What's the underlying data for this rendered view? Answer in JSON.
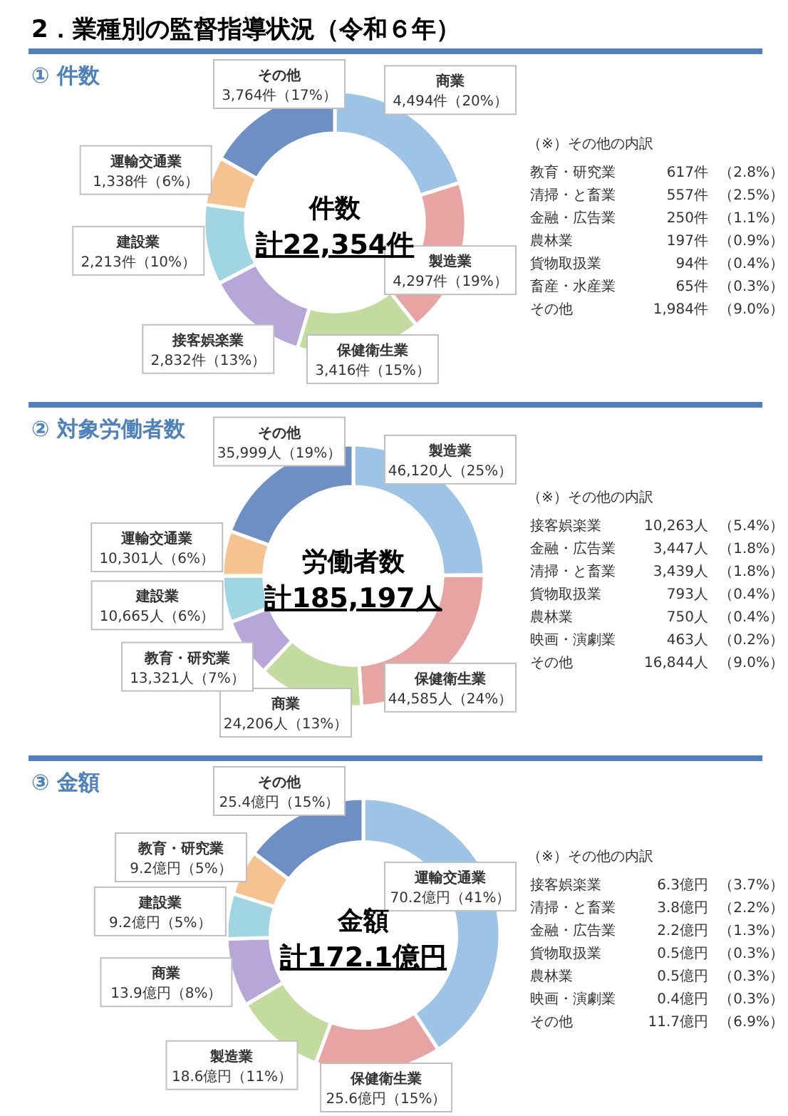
{
  "chart_data": [
    {
      "type": "donut",
      "title": "2．業種別の監督指導状況（令和６年）",
      "subtitle": "① 件数",
      "categories": [
        "商業",
        "製造業",
        "保健衛生業",
        "接客娯楽業",
        "建設業",
        "運輸交通業",
        "その他"
      ],
      "values": [
        4494,
        4297,
        3416,
        2832,
        2213,
        1338,
        3764
      ],
      "value_labels": [
        "4,494件（20%）",
        "4,297件（19%）",
        "3,416件（15%）",
        "2,832件（13%）",
        "2,213件（10%）",
        "1,338件（6%）",
        "3,764件（17%）"
      ],
      "colors": [
        "#9dc3e6",
        "#e8a3a3",
        "#c4dba0",
        "#b7a6d8",
        "#9fd6e2",
        "#f6c290",
        "#6d8fc4"
      ],
      "annotations": [
        "件数",
        "計22,354件",
        "（※）その他の内訳",
        "教育・研究業",
        "617件",
        "（2.8%）",
        "清掃・と畜業",
        "557件",
        "（2.5%）",
        "金融・広告業",
        "250件",
        "（1.1%）",
        "農林業",
        "197件",
        "（0.9%）",
        "貨物取扱業",
        "94件",
        "（0.4%）",
        "畜産・水産業",
        "65件",
        "（0.3%）",
        "その他",
        "1,984件",
        "（9.0%）"
      ]
    },
    {
      "type": "donut",
      "subtitle": "② 対象労働者数",
      "categories": [
        "製造業",
        "保健衛生業",
        "商業",
        "教育・研究業",
        "建設業",
        "運輸交通業",
        "その他"
      ],
      "values": [
        46120,
        44585,
        24206,
        13321,
        10665,
        10301,
        35999
      ],
      "value_labels": [
        "46,120人（25%）",
        "44,585人（24%）",
        "24,206人（13%）",
        "13,321人（7%）",
        "10,665人（6%）",
        "10,301人（6%）",
        "35,999人（19%）"
      ],
      "colors": [
        "#9dc3e6",
        "#e8a3a3",
        "#c4dba0",
        "#b7a6d8",
        "#9fd6e2",
        "#f6c290",
        "#6d8fc4"
      ],
      "annotations": [
        "労働者数",
        "計185,197人",
        "（※）その他の内訳",
        "接客娯楽業",
        "10,263人",
        "（5.4%）",
        "金融・広告業",
        "3,447人",
        "（1.8%）",
        "清掃・と畜業",
        "3,439人",
        "（1.8%）",
        "貨物取扱業",
        "793人",
        "（0.4%）",
        "農林業",
        "750人",
        "（0.4%）",
        "映画・演劇業",
        "463人",
        "（0.2%）",
        "その他",
        "16,844人",
        "（9.0%）"
      ]
    },
    {
      "type": "donut",
      "subtitle": "③ 金額",
      "categories": [
        "運輸交通業",
        "保健衛生業",
        "製造業",
        "商業",
        "建設業",
        "教育・研究業",
        "その他"
      ],
      "values": [
        70.2,
        25.6,
        18.6,
        13.9,
        9.2,
        9.2,
        25.4
      ],
      "value_labels": [
        "70.2億円（41%）",
        "25.6億円（15%）",
        "18.6億円（11%）",
        "13.9億円（8%）",
        "9.2億円（5%）",
        "9.2億円（5%）",
        "25.4億円（15%）"
      ],
      "colors": [
        "#9dc3e6",
        "#e8a3a3",
        "#c4dba0",
        "#b7a6d8",
        "#9fd6e2",
        "#f6c290",
        "#6d8fc4"
      ],
      "annotations": [
        "金額",
        "計172.1億円",
        "（※）その他の内訳",
        "接客娯楽業",
        "6.3億円",
        "（3.7%）",
        "清掃・と畜業",
        "3.8億円",
        "（2.2%）",
        "金融・広告業",
        "2.2億円",
        "（1.3%）",
        "貨物取扱業",
        "0.5億円",
        "（0.3%）",
        "農林業",
        "0.5億円",
        "（0.3%）",
        "映画・演劇業",
        "0.4億円",
        "（0.3%）",
        "その他",
        "11.7億円",
        "（6.9%）"
      ]
    }
  ]
}
